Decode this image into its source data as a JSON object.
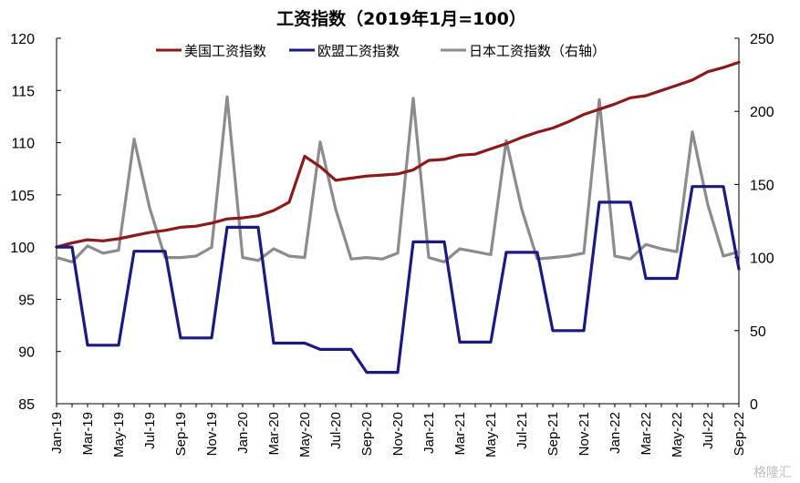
{
  "chart_data": {
    "type": "line",
    "title": "工资指数（2019年1月=100）",
    "categories": [
      "Jan-19",
      "Feb-19",
      "Mar-19",
      "Apr-19",
      "May-19",
      "Jun-19",
      "Jul-19",
      "Aug-19",
      "Sep-19",
      "Oct-19",
      "Nov-19",
      "Dec-19",
      "Jan-20",
      "Feb-20",
      "Mar-20",
      "Apr-20",
      "May-20",
      "Jun-20",
      "Jul-20",
      "Aug-20",
      "Sep-20",
      "Oct-20",
      "Nov-20",
      "Dec-20",
      "Jan-21",
      "Feb-21",
      "Mar-21",
      "Apr-21",
      "May-21",
      "Jun-21",
      "Jul-21",
      "Aug-21",
      "Sep-21",
      "Oct-21",
      "Nov-21",
      "Dec-21",
      "Jan-22",
      "Feb-22",
      "Mar-22",
      "Apr-22",
      "May-22",
      "Jun-22",
      "Jul-22",
      "Aug-22",
      "Sep-22"
    ],
    "x_tick_labels": [
      "Jan-19",
      "Mar-19",
      "May-19",
      "Jul-19",
      "Sep-19",
      "Nov-19",
      "Jan-20",
      "Mar-20",
      "May-20",
      "Jul-20",
      "Sep-20",
      "Nov-20",
      "Jan-21",
      "Mar-21",
      "May-21",
      "Jul-21",
      "Sep-21",
      "Nov-21",
      "Jan-22",
      "Mar-22",
      "May-22",
      "Jul-22",
      "Sep-22"
    ],
    "y_left": {
      "min": 85,
      "max": 120,
      "ticks": [
        "85",
        "90",
        "95",
        "100",
        "105",
        "110",
        "115",
        "120"
      ]
    },
    "y_right": {
      "min": 0,
      "max": 250,
      "ticks": [
        "0",
        "50",
        "100",
        "150",
        "200",
        "250"
      ]
    },
    "legend_position": "top",
    "series": [
      {
        "name": "美国工资指数",
        "axis": "left",
        "color": "#8b1a1a",
        "values": [
          100.0,
          100.4,
          100.7,
          100.6,
          100.8,
          101.1,
          101.4,
          101.6,
          101.9,
          102.0,
          102.3,
          102.7,
          102.8,
          103.0,
          103.5,
          104.3,
          108.7,
          107.7,
          106.4,
          106.6,
          106.8,
          106.9,
          107.0,
          107.4,
          108.3,
          108.4,
          108.8,
          108.9,
          109.4,
          109.9,
          110.5,
          111.0,
          111.4,
          112.0,
          112.7,
          113.2,
          113.7,
          114.3,
          114.5,
          115.0,
          115.5,
          116.0,
          116.8,
          117.2,
          117.7
        ]
      },
      {
        "name": "欧盟工资指数",
        "axis": "left",
        "color": "#1a1a80",
        "values": [
          100.0,
          100.0,
          90.6,
          90.6,
          90.6,
          99.6,
          99.6,
          99.6,
          91.3,
          91.3,
          91.3,
          101.9,
          101.9,
          101.9,
          90.8,
          90.8,
          90.8,
          90.2,
          90.2,
          90.2,
          88.0,
          88.0,
          88.0,
          100.5,
          100.5,
          100.5,
          90.9,
          90.9,
          90.9,
          99.5,
          99.5,
          99.5,
          92.0,
          92.0,
          92.0,
          104.3,
          104.3,
          104.3,
          97.0,
          97.0,
          97.0,
          105.8,
          105.8,
          105.8,
          97.9
        ]
      },
      {
        "name": "日本工资指数（右轴）",
        "axis": "right",
        "color": "#8c8c8c",
        "values": [
          100,
          97,
          108,
          103,
          105,
          181,
          134,
          100,
          100,
          101,
          107,
          210,
          100,
          98,
          106,
          101,
          100,
          179,
          133,
          99,
          100,
          99,
          103,
          209,
          100,
          97,
          106,
          104,
          102,
          180,
          133,
          99,
          100,
          101,
          103,
          208,
          101,
          99,
          109,
          106,
          104,
          186,
          136,
          101,
          104
        ]
      }
    ]
  },
  "watermark": "格隆汇"
}
